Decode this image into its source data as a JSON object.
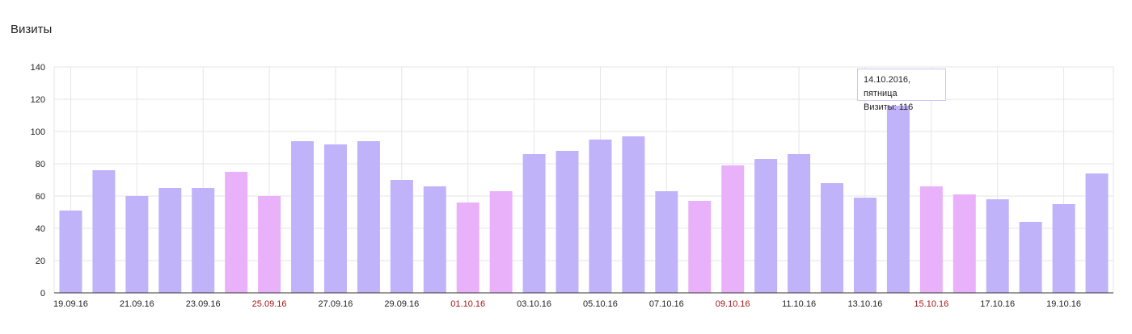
{
  "title": "Визиты",
  "tooltip": {
    "date": "14.10.2016, пятница",
    "value_line": "Визиты: 116"
  },
  "colors": {
    "weekday": "#c1b3fa",
    "weekend": "#e9b1fa",
    "weekend_label": "#a31515",
    "grid": "#e6e6e6"
  },
  "chart_data": {
    "type": "bar",
    "categories": [
      "19.09.16",
      "20.09.16",
      "21.09.16",
      "22.09.16",
      "23.09.16",
      "24.09.16",
      "25.09.16",
      "26.09.16",
      "27.09.16",
      "28.09.16",
      "29.09.16",
      "30.09.16",
      "01.10.16",
      "02.10.16",
      "03.10.16",
      "04.10.16",
      "05.10.16",
      "06.10.16",
      "07.10.16",
      "08.10.16",
      "09.10.16",
      "10.10.16",
      "11.10.16",
      "12.10.16",
      "13.10.16",
      "14.10.16",
      "15.10.16",
      "16.10.16",
      "17.10.16",
      "18.10.16",
      "19.10.16",
      "20.10.16"
    ],
    "values": [
      51,
      76,
      60,
      65,
      65,
      75,
      60,
      94,
      92,
      94,
      70,
      66,
      56,
      63,
      86,
      88,
      95,
      97,
      63,
      57,
      79,
      83,
      86,
      68,
      59,
      116,
      66,
      61,
      58,
      44,
      55,
      74
    ],
    "weekend": [
      false,
      false,
      false,
      false,
      false,
      true,
      true,
      false,
      false,
      false,
      false,
      false,
      true,
      true,
      false,
      false,
      false,
      false,
      false,
      true,
      true,
      false,
      false,
      false,
      false,
      false,
      true,
      true,
      false,
      false,
      false,
      false
    ],
    "x_tick_labels": [
      "19.09.16",
      "21.09.16",
      "23.09.16",
      "25.09.16",
      "27.09.16",
      "29.09.16",
      "01.10.16",
      "03.10.16",
      "05.10.16",
      "07.10.16",
      "09.10.16",
      "11.10.16",
      "13.10.16",
      "15.10.16",
      "17.10.16",
      "19.10.16"
    ],
    "y_ticks": [
      0,
      20,
      40,
      60,
      80,
      100,
      120,
      140
    ],
    "ylim": [
      0,
      140
    ],
    "grid": true,
    "legend": "none"
  }
}
